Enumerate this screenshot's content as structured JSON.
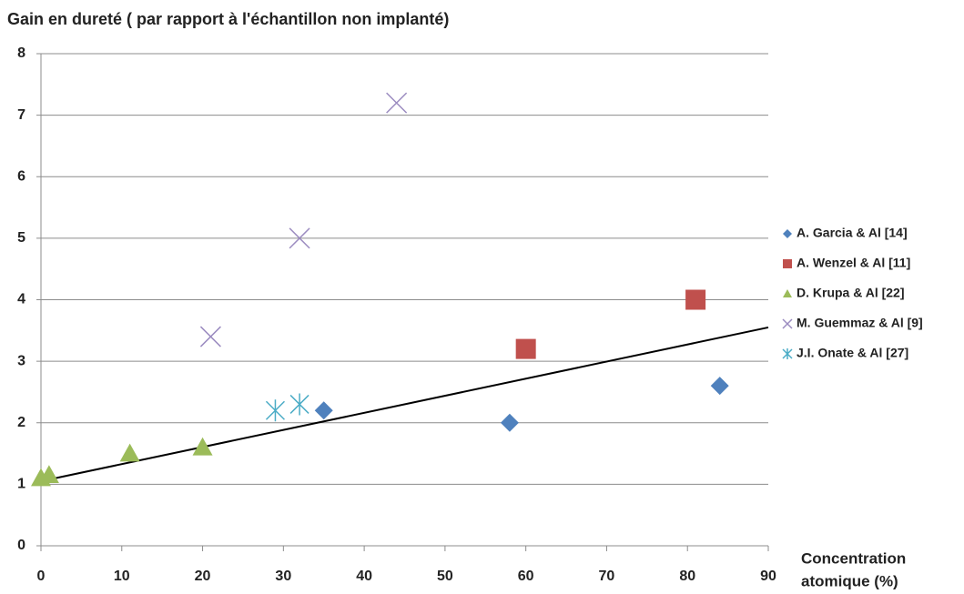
{
  "chart_data": {
    "type": "scatter",
    "title": "Gain en dureté ( par rapport à l'échantillon non implanté)",
    "x_label": [
      "Concentration",
      "atomique (%)"
    ],
    "xlim": [
      0,
      90
    ],
    "xticks": [
      0,
      10,
      20,
      30,
      40,
      50,
      60,
      70,
      80,
      90
    ],
    "ylim": [
      0,
      8
    ],
    "yticks": [
      0,
      1,
      2,
      3,
      4,
      5,
      6,
      7,
      8
    ],
    "grid": true,
    "legend": "right",
    "series": [
      {
        "name": "A. Garcia & Al [14]",
        "color": "#4f81bd",
        "marker": "diamond",
        "x": [
          35,
          58,
          84
        ],
        "values": [
          2.2,
          2.0,
          2.6
        ]
      },
      {
        "name": "A. Wenzel & Al  [11]",
        "color": "#c0504d",
        "marker": "square",
        "x": [
          60,
          81
        ],
        "values": [
          3.2,
          4.0
        ]
      },
      {
        "name": "D. Krupa & Al [22]",
        "color": "#9bbb59",
        "marker": "triangle",
        "x": [
          0,
          1,
          11,
          20
        ],
        "values": [
          1.1,
          1.15,
          1.5,
          1.6
        ]
      },
      {
        "name": "M. Guemmaz & Al [9]",
        "color": "#9b8bc0",
        "marker": "x",
        "x": [
          21,
          32,
          44
        ],
        "values": [
          3.4,
          5.0,
          7.2
        ]
      },
      {
        "name": "J.I. Onate & Al  [27]",
        "color": "#4bacc6",
        "marker": "star",
        "x": [
          29,
          32
        ],
        "values": [
          2.2,
          2.3
        ]
      }
    ],
    "trendline": {
      "color": "#000000",
      "x": [
        0,
        90
      ],
      "values": [
        1.05,
        3.55
      ]
    }
  }
}
